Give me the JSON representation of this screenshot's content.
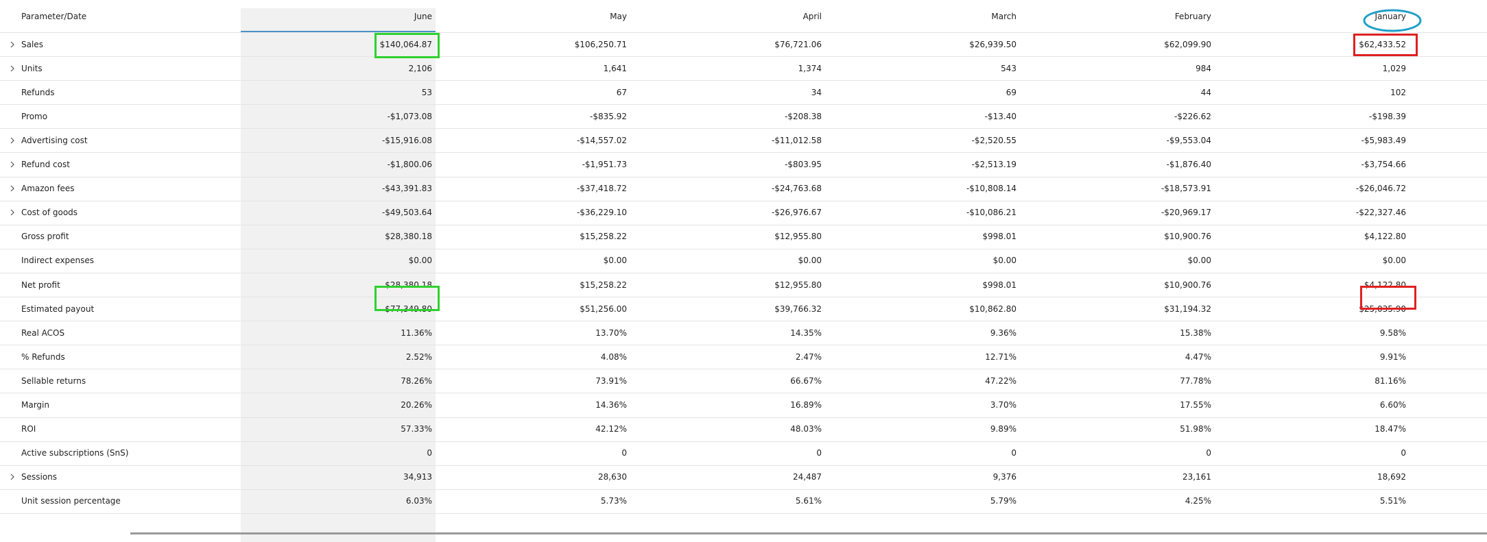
{
  "table": {
    "header": [
      "Parameter/Date",
      "June",
      "May",
      "April",
      "March",
      "February",
      "January"
    ],
    "rows": [
      {
        "cells": [
          "Sales",
          "$140,064.87",
          "$106,250.71",
          "$76,721.06",
          "$26,939.50",
          "$62,099.90",
          "$62,433.52"
        ],
        "expandable": true
      },
      {
        "cells": [
          "Units",
          "2,106",
          "1,641",
          "1,374",
          "543",
          "984",
          "1,029"
        ],
        "expandable": true
      },
      {
        "cells": [
          "Refunds",
          "53",
          "67",
          "34",
          "69",
          "44",
          "102"
        ],
        "expandable": false
      },
      {
        "cells": [
          "Promo",
          "-$1,073.08",
          "-$835.92",
          "-$208.38",
          "-$13.40",
          "-$226.62",
          "-$198.39"
        ],
        "expandable": false
      },
      {
        "cells": [
          "Advertising cost",
          "-$15,916.08",
          "-$14,557.02",
          "-$11,012.58",
          "-$2,520.55",
          "-$9,553.04",
          "-$5,983.49"
        ],
        "expandable": true
      },
      {
        "cells": [
          "Refund cost",
          "-$1,800.06",
          "-$1,951.73",
          "-$803.95",
          "-$2,513.19",
          "-$1,876.40",
          "-$3,754.66"
        ],
        "expandable": true
      },
      {
        "cells": [
          "Amazon fees",
          "-$43,391.83",
          "-$37,418.72",
          "-$24,763.68",
          "-$10,808.14",
          "-$18,573.91",
          "-$26,046.72"
        ],
        "expandable": true
      },
      {
        "cells": [
          "Cost of goods",
          "-$49,503.64",
          "-$36,229.10",
          "-$26,976.67",
          "-$10,086.21",
          "-$20,969.17",
          "-$22,327.46"
        ],
        "expandable": true
      },
      {
        "cells": [
          "Gross profit",
          "$28,380.18",
          "$15,258.22",
          "$12,955.80",
          "$998.01",
          "$10,900.76",
          "$4,122.80"
        ],
        "expandable": false
      },
      {
        "cells": [
          "Indirect expenses",
          "$0.00",
          "$0.00",
          "$0.00",
          "$0.00",
          "$0.00",
          "$0.00"
        ],
        "expandable": false
      },
      {
        "cells": [
          "Net profit",
          "$28,380.18",
          "$15,258.22",
          "$12,955.80",
          "$998.01",
          "$10,900.76",
          "$4,122.80"
        ],
        "expandable": false
      },
      {
        "cells": [
          "Estimated payout",
          "$77,349.80",
          "$51,256.00",
          "$39,766.32",
          "$10,862.80",
          "$31,194.32",
          "$25,035.90"
        ],
        "expandable": false
      },
      {
        "cells": [
          "Real ACOS",
          "11.36%",
          "13.70%",
          "14.35%",
          "9.36%",
          "15.38%",
          "9.58%"
        ],
        "expandable": false
      },
      {
        "cells": [
          "% Refunds",
          "2.52%",
          "4.08%",
          "2.47%",
          "12.71%",
          "4.47%",
          "9.91%"
        ],
        "expandable": false
      },
      {
        "cells": [
          "Sellable returns",
          "78.26%",
          "73.91%",
          "66.67%",
          "47.22%",
          "77.78%",
          "81.16%"
        ],
        "expandable": false
      },
      {
        "cells": [
          "Margin",
          "20.26%",
          "14.36%",
          "16.89%",
          "3.70%",
          "17.55%",
          "6.60%"
        ],
        "expandable": false
      },
      {
        "cells": [
          "ROI",
          "57.33%",
          "42.12%",
          "48.03%",
          "9.89%",
          "51.98%",
          "18.47%"
        ],
        "expandable": false
      },
      {
        "cells": [
          "Active subscriptions (SnS)",
          "0",
          "0",
          "0",
          "0",
          "0",
          "0"
        ],
        "expandable": false
      },
      {
        "cells": [
          "Sessions",
          "34,913",
          "28,630",
          "24,487",
          "9,376",
          "23,161",
          "18,692"
        ],
        "expandable": true
      },
      {
        "cells": [
          "Unit session percentage",
          "6.03%",
          "5.73%",
          "5.61%",
          "5.79%",
          "4.25%",
          "5.51%"
        ],
        "expandable": false
      }
    ]
  }
}
